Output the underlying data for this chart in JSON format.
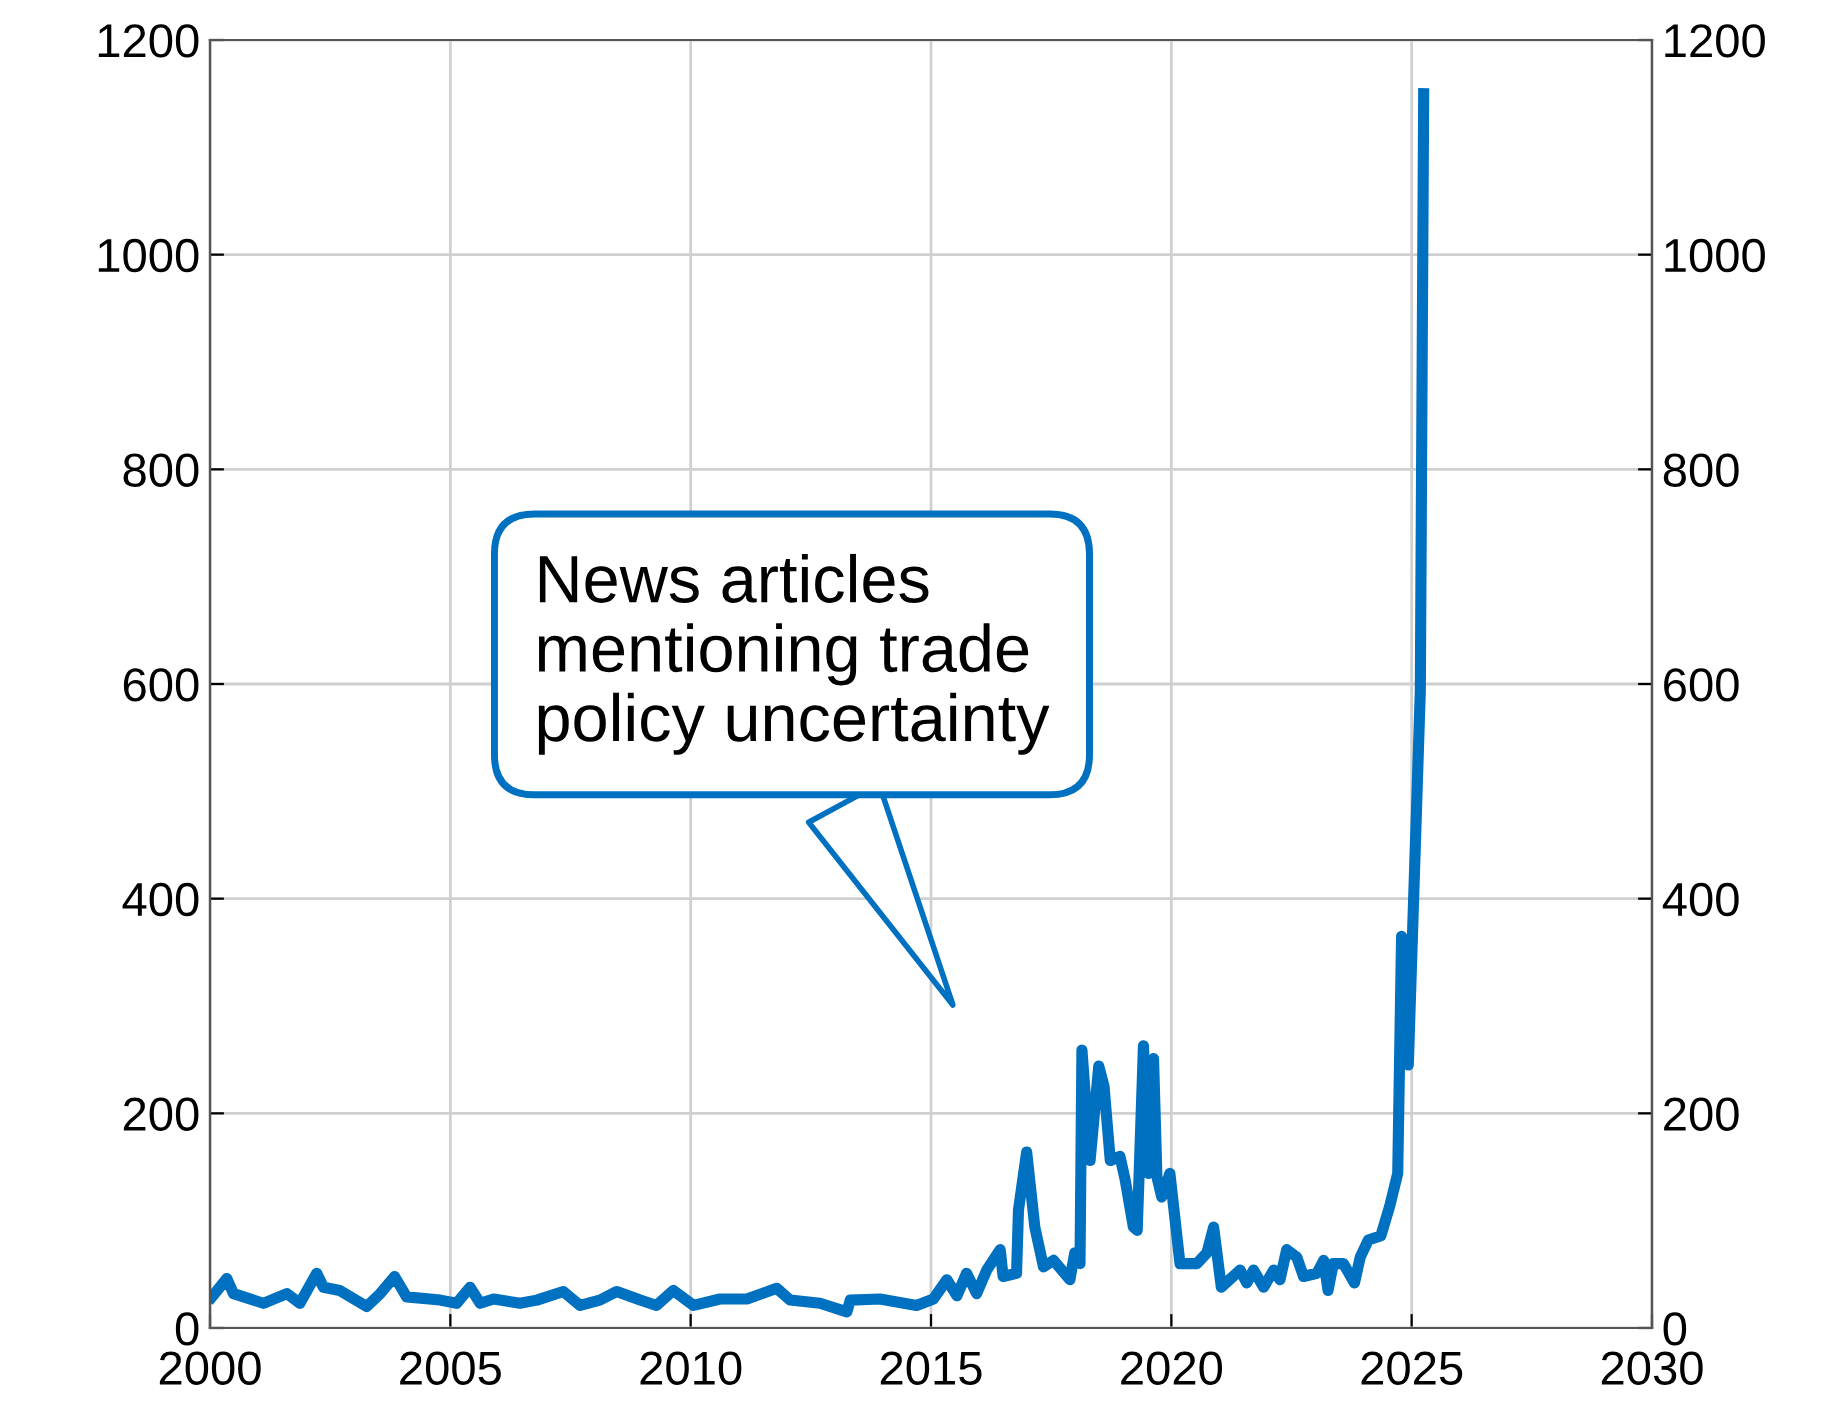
{
  "chart_data": {
    "type": "line",
    "annotations": [
      "News articles\nmentioning trade\npolicy uncertainty"
    ],
    "xlim": [
      2000,
      2030
    ],
    "xticks": [
      2000,
      2005,
      2010,
      2015,
      2020,
      2025,
      2030
    ],
    "ylim": [
      0,
      1200
    ],
    "yticks": [
      0,
      200,
      400,
      600,
      800,
      1000,
      1200
    ],
    "y2lim": [
      0,
      1200
    ],
    "y2ticks": [
      0,
      200,
      400,
      600,
      800,
      1000,
      1200
    ],
    "grid": true,
    "legend": false,
    "marker": "none",
    "line_style": "solid",
    "series": [
      {
        "color": "#0070c0",
        "x": [
          2000.04,
          2000.35,
          2000.49,
          2001.11,
          2001.6,
          2001.87,
          2002.22,
          2002.36,
          2002.7,
          2003.26,
          2003.54,
          2003.84,
          2004.09,
          2004.79,
          2005.13,
          2005.41,
          2005.62,
          2005.9,
          2006.45,
          2006.8,
          2007.35,
          2007.7,
          2008.11,
          2008.46,
          2008.95,
          2009.29,
          2009.64,
          2010.06,
          2010.61,
          2011.17,
          2011.79,
          2012.07,
          2012.69,
          2013.25,
          2013.32,
          2013.94,
          2014.7,
          2015.05,
          2015.33,
          2015.54,
          2015.74,
          2015.95,
          2016.16,
          2016.44,
          2016.5,
          2016.78,
          2016.82,
          2016.99,
          2017.16,
          2017.34,
          2017.55,
          2017.89,
          2017.99,
          2018.1,
          2018.14,
          2018.31,
          2018.49,
          2018.6,
          2018.73,
          2018.93,
          2019.04,
          2019.21,
          2019.29,
          2019.42,
          2019.52,
          2019.63,
          2019.7,
          2019.8,
          2019.97,
          2020.18,
          2020.53,
          2020.74,
          2020.88,
          2021.04,
          2021.43,
          2021.57,
          2021.71,
          2021.92,
          2022.13,
          2022.26,
          2022.4,
          2022.61,
          2022.75,
          2023.03,
          2023.17,
          2023.26,
          2023.37,
          2023.58,
          2023.81,
          2023.93,
          2024.1,
          2024.36,
          2024.54,
          2024.71,
          2024.79,
          2024.93,
          2025.18,
          2025.25
        ],
        "values": [
          29,
          46,
          32,
          23,
          32,
          23,
          51,
          38,
          35,
          20,
          32,
          48,
          29,
          26,
          23,
          38,
          23,
          27,
          23,
          26,
          34,
          21,
          26,
          34,
          26,
          21,
          35,
          21,
          27,
          27,
          37,
          26,
          23,
          15,
          26,
          27,
          21,
          27,
          45,
          30,
          51,
          32,
          54,
          73,
          48,
          51,
          110,
          164,
          94,
          57,
          63,
          45,
          70,
          60,
          259,
          156,
          244,
          225,
          156,
          160,
          138,
          94,
          91,
          263,
          144,
          251,
          141,
          122,
          144,
          60,
          60,
          70,
          94,
          38,
          54,
          42,
          54,
          38,
          54,
          45,
          73,
          66,
          48,
          51,
          63,
          35,
          60,
          60,
          42,
          66,
          82,
          86,
          113,
          144,
          365,
          245,
          594,
          1150
        ]
      }
    ]
  }
}
